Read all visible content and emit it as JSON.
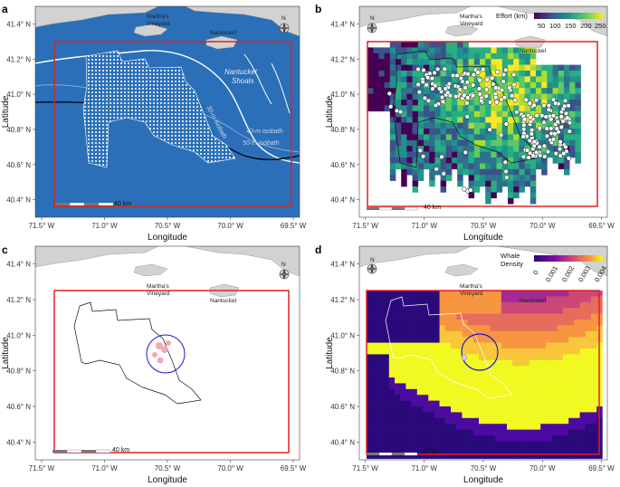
{
  "panels": [
    {
      "id": "a",
      "letter": "a",
      "ylabel": "Latitude",
      "xlabel": "Longitude"
    },
    {
      "id": "b",
      "letter": "b",
      "ylabel": "Latitude",
      "xlabel": "Longitude"
    },
    {
      "id": "c",
      "letter": "c",
      "ylabel": "Latitude",
      "xlabel": "Longitude"
    },
    {
      "id": "d",
      "letter": "d",
      "ylabel": "Latitude",
      "xlabel": "Longitude"
    }
  ],
  "axes": {
    "x_ticks": [
      "71.5° W",
      "71.0° W",
      "70.5° W",
      "70.0° W",
      "69.5° W"
    ],
    "y_ticks": [
      "41.4° N",
      "41.2° N",
      "41.0° N",
      "40.8° N",
      "40.6° N",
      "40.4° N"
    ],
    "xlim": [
      -71.55,
      -69.45
    ],
    "ylim": [
      40.3,
      41.5
    ]
  },
  "labels": {
    "marthas_vineyard_1": "Martha's",
    "marthas_vineyard_2": "Vineyard",
    "nantucket": "Nantucket",
    "nantucket_shoals_1": "Nantucket",
    "nantucket_shoals_2": "Shoals",
    "isobath_30": "30-m isobath",
    "isobath_40": "40-m isobath",
    "isobath_50": "50-m isobath",
    "north": "N",
    "scale": "40 km"
  },
  "legend_b": {
    "title": "Effort (km)",
    "ticks": [
      "50",
      "100",
      "150",
      "200",
      "250"
    ]
  },
  "legend_d": {
    "title_1": "Whale",
    "title_2": "Density",
    "ticks": [
      "0",
      "0.001",
      "0.002",
      "0.003",
      "0.004"
    ]
  },
  "colors": {
    "ocean": "#2a6fb8",
    "land": "#d2d2d2",
    "study_box": "#e02020",
    "circle": "#1a1acc"
  }
}
